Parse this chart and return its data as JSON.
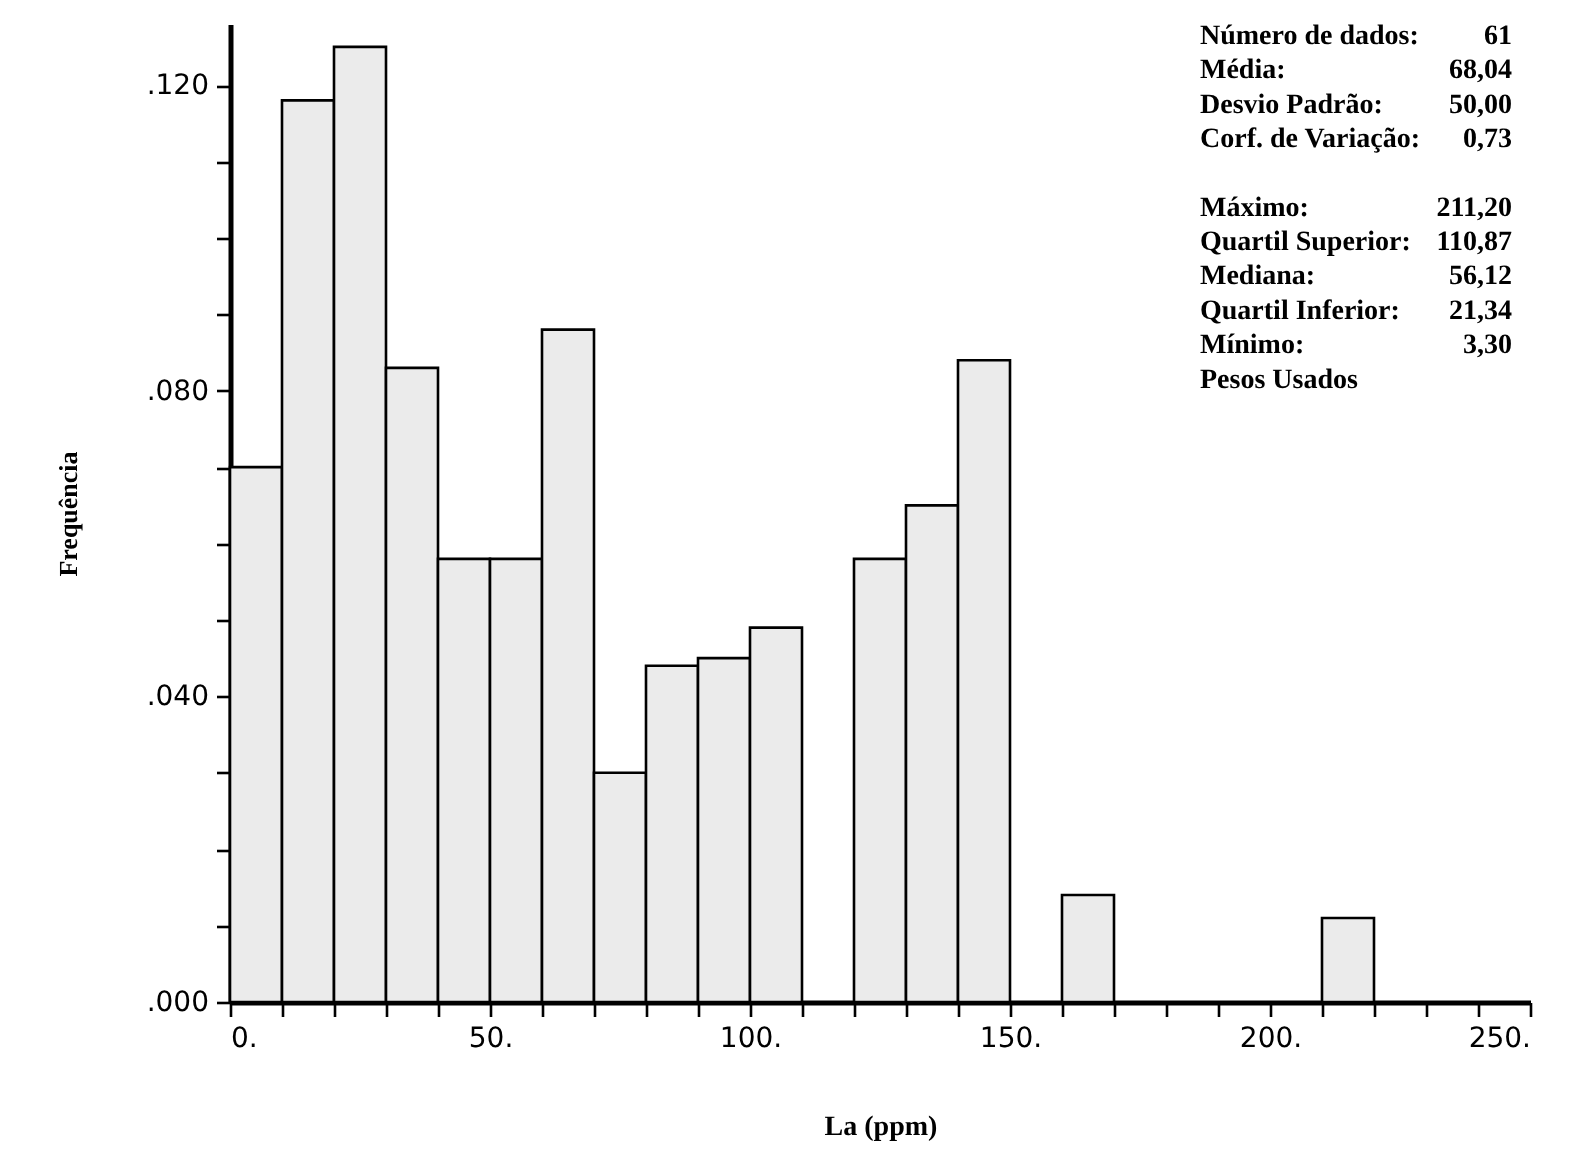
{
  "chart_data": {
    "type": "histogram",
    "xlabel": "La (ppm)",
    "ylabel": "Frequência",
    "bins": [
      0,
      10,
      20,
      30,
      40,
      50,
      60,
      70,
      80,
      90,
      100,
      110,
      120,
      130,
      140,
      150,
      160,
      170,
      180,
      190,
      200,
      210,
      220,
      230,
      240,
      250
    ],
    "values": [
      0.07,
      0.118,
      0.125,
      0.083,
      0.058,
      0.058,
      0.088,
      0.03,
      0.044,
      0.045,
      0.049,
      0,
      0.058,
      0.065,
      0.084,
      0,
      0.014,
      0,
      0,
      0,
      0,
      0.011,
      0,
      0,
      0
    ],
    "color": "#ebebeb",
    "xlim": [
      0,
      250
    ],
    "xticks": [
      {
        "value": 0,
        "label": "0."
      },
      {
        "value": 10,
        "label": null
      },
      {
        "value": 20,
        "label": null
      },
      {
        "value": 30,
        "label": null
      },
      {
        "value": 40,
        "label": null
      },
      {
        "value": 50,
        "label": "50."
      },
      {
        "value": 60,
        "label": null
      },
      {
        "value": 70,
        "label": null
      },
      {
        "value": 80,
        "label": null
      },
      {
        "value": 90,
        "label": null
      },
      {
        "value": 100,
        "label": "100."
      },
      {
        "value": 110,
        "label": null
      },
      {
        "value": 120,
        "label": null
      },
      {
        "value": 130,
        "label": null
      },
      {
        "value": 140,
        "label": null
      },
      {
        "value": 150,
        "label": "150."
      },
      {
        "value": 160,
        "label": null
      },
      {
        "value": 170,
        "label": null
      },
      {
        "value": 180,
        "label": null
      },
      {
        "value": 190,
        "label": null
      },
      {
        "value": 200,
        "label": "200."
      },
      {
        "value": 210,
        "label": null
      },
      {
        "value": 220,
        "label": null
      },
      {
        "value": 230,
        "label": null
      },
      {
        "value": 240,
        "label": null
      },
      {
        "value": 250,
        "label": "250."
      }
    ],
    "ylim": [
      0,
      0.128
    ],
    "yticks": [
      {
        "value": 0,
        "label": ".000"
      },
      {
        "value": 0.01,
        "label": null
      },
      {
        "value": 0.02,
        "label": null
      },
      {
        "value": 0.03,
        "label": null
      },
      {
        "value": 0.04,
        "label": ".040"
      },
      {
        "value": 0.05,
        "label": null
      },
      {
        "value": 0.06,
        "label": null
      },
      {
        "value": 0.07,
        "label": null
      },
      {
        "value": 0.08,
        "label": ".080"
      },
      {
        "value": 0.09,
        "label": null
      },
      {
        "value": 0.1,
        "label": null
      },
      {
        "value": 0.11,
        "label": null
      },
      {
        "value": 0.12,
        "label": ".120"
      }
    ],
    "grid": false,
    "annotations": [
      "Número de dados:\t61",
      "Média:\t68,04",
      "Desvio Padrão:\t50,00",
      "Corf. de Variação:\t0,73",
      "Máximo:\t211,20",
      "Quartil Superior:\t110,87",
      "Mediana:\t56,12",
      "Quartil Inferior:\t21,34",
      "Mínimo:\t3,30",
      "Pesos Usados"
    ]
  }
}
